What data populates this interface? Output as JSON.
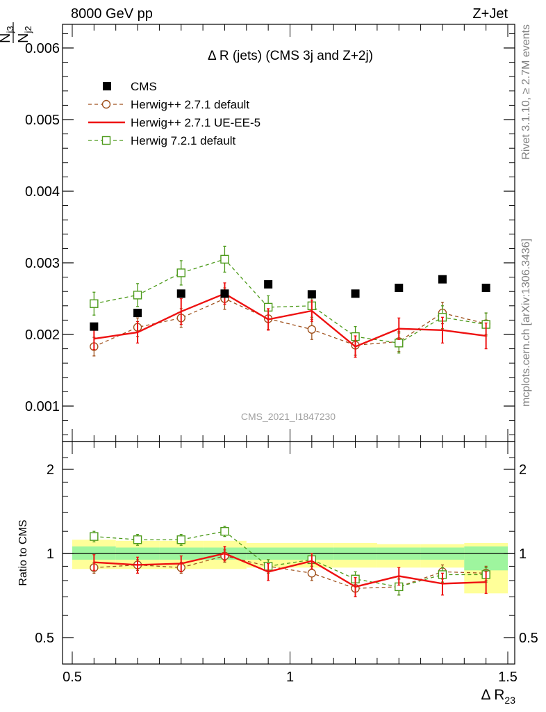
{
  "header": {
    "left": "8000 GeV pp",
    "right": "Z+Jet"
  },
  "side_text": {
    "top": "Rivet 3.1.10, ≥ 2.7M events",
    "bottom": "mcplots.cern.ch [arXiv:1306.3436]"
  },
  "analysis_id": "CMS_2021_I1847230",
  "chart_data": [
    {
      "type": "scatter",
      "title": "Δ R (jets) (CMS 3j and Z+2j)",
      "ylabel": "N_j3 / N_j2",
      "xlabel": "Δ R_23",
      "xlim": [
        0.5,
        1.5
      ],
      "ylim": [
        0.0005,
        0.0063
      ],
      "x_ticks": [
        0.5,
        1,
        1.5
      ],
      "x_tick_labels": [
        "0.5",
        "1",
        "1.5"
      ],
      "y_ticks": [
        0.001,
        0.002,
        0.003,
        0.004,
        0.005,
        0.006
      ],
      "y_tick_labels": [
        "0.001",
        "0.002",
        "0.003",
        "0.004",
        "0.005",
        "0.006"
      ],
      "legend_position": "top-left",
      "x": [
        0.55,
        0.65,
        0.75,
        0.85,
        0.95,
        1.05,
        1.15,
        1.25,
        1.35,
        1.45
      ],
      "series": [
        {
          "name": "CMS",
          "style": "data",
          "color": "#000000",
          "values": [
            0.00211,
            0.0023,
            0.00257,
            0.00257,
            0.0027,
            0.00256,
            0.00257,
            0.00265,
            0.00277,
            0.00265
          ]
        },
        {
          "name": "Herwig++ 2.7.1 default",
          "style": "dashed-circle",
          "color": "#a0521e",
          "values": [
            0.00183,
            0.0021,
            0.00223,
            0.0025,
            0.00222,
            0.00207,
            0.00185,
            0.0019,
            0.0023,
            0.00215
          ],
          "errors": [
            0.00013,
            0.00013,
            0.00013,
            0.00015,
            0.00015,
            0.00014,
            0.00014,
            0.00014,
            0.00015,
            0.00015
          ]
        },
        {
          "name": "Herwig++ 2.7.1 UE-EE-5",
          "style": "solid",
          "color": "#ee1111",
          "values": [
            0.00194,
            0.00203,
            0.00232,
            0.00257,
            0.00221,
            0.00233,
            0.00183,
            0.00208,
            0.00206,
            0.00198
          ],
          "errors": [
            0.00015,
            0.00015,
            0.00018,
            0.00015,
            0.00015,
            0.00015,
            0.00015,
            0.00015,
            0.00018,
            0.00018
          ]
        },
        {
          "name": "Herwig 7.2.1 default",
          "style": "dashed-square",
          "color": "#4c9a1a",
          "values": [
            0.00243,
            0.00255,
            0.00286,
            0.00305,
            0.00238,
            0.0024,
            0.00197,
            0.00188,
            0.00224,
            0.00214
          ],
          "errors": [
            0.00016,
            0.00016,
            0.00017,
            0.00018,
            0.00016,
            0.00016,
            0.00014,
            0.00014,
            0.00016,
            0.00016
          ]
        }
      ]
    },
    {
      "type": "scatter",
      "ylabel": "Ratio to CMS",
      "xlabel": "Δ R_23",
      "xlim": [
        0.5,
        1.5
      ],
      "ylim": [
        0.35,
        2.35
      ],
      "y_ticks": [
        0.5,
        1,
        2
      ],
      "y_tick_labels": [
        "0.5",
        "1",
        "2"
      ],
      "reference": 1,
      "bands": {
        "x_edges": [
          0.5,
          0.6,
          0.7,
          0.8,
          0.9,
          1.0,
          1.1,
          1.2,
          1.3,
          1.4,
          1.5
        ],
        "inner": {
          "color": "#9ef59e",
          "low": [
            0.95,
            0.95,
            0.95,
            0.95,
            0.95,
            0.95,
            0.95,
            0.95,
            0.95,
            0.87
          ],
          "high": [
            1.06,
            1.05,
            1.05,
            1.05,
            1.05,
            1.05,
            1.05,
            1.05,
            1.05,
            1.06
          ]
        },
        "outer": {
          "color": "#ffff99",
          "low": [
            0.88,
            0.88,
            0.88,
            0.88,
            0.89,
            0.89,
            0.89,
            0.89,
            0.89,
            0.72
          ],
          "high": [
            1.12,
            1.11,
            1.11,
            1.11,
            1.09,
            1.09,
            1.09,
            1.08,
            1.08,
            1.09
          ]
        }
      },
      "series": [
        {
          "name": "Herwig++ 2.7.1 default",
          "style": "dashed-circle",
          "color": "#a0521e",
          "values": [
            0.89,
            0.91,
            0.89,
            0.98,
            0.9,
            0.85,
            0.75,
            0.76,
            0.86,
            0.85
          ],
          "errors": [
            0.04,
            0.04,
            0.04,
            0.05,
            0.05,
            0.05,
            0.05,
            0.05,
            0.05,
            0.05
          ]
        },
        {
          "name": "Herwig++ 2.7.1 UE-EE-5",
          "style": "solid",
          "color": "#ee1111",
          "values": [
            0.93,
            0.91,
            0.92,
            1.0,
            0.86,
            0.94,
            0.76,
            0.83,
            0.78,
            0.79
          ],
          "errors": [
            0.06,
            0.06,
            0.06,
            0.06,
            0.06,
            0.06,
            0.06,
            0.06,
            0.07,
            0.07
          ]
        },
        {
          "name": "Herwig 7.2.1 default",
          "style": "dashed-square",
          "color": "#4c9a1a",
          "values": [
            1.15,
            1.12,
            1.12,
            1.2,
            0.9,
            0.95,
            0.81,
            0.76,
            0.84,
            0.84
          ],
          "errors": [
            0.05,
            0.05,
            0.05,
            0.05,
            0.05,
            0.05,
            0.05,
            0.05,
            0.05,
            0.05
          ]
        }
      ]
    }
  ]
}
